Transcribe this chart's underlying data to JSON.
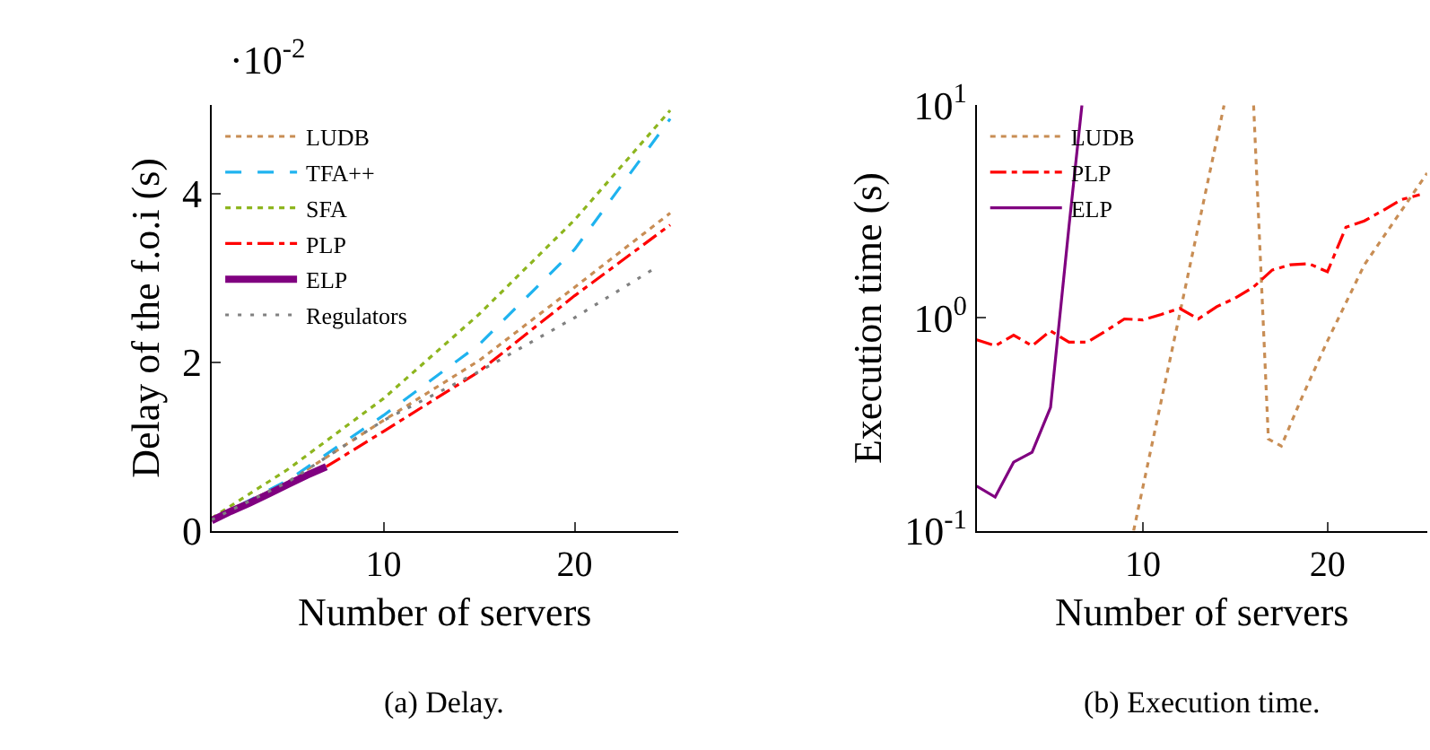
{
  "chart_data": [
    {
      "type": "line",
      "xlabel": "Number of servers",
      "ylabel": "Delay of the f.o.i (s)",
      "xlim": [
        1,
        25.4
      ],
      "ylim": [
        0,
        5.05
      ],
      "xticks": [
        10,
        20
      ],
      "yticks": [
        0,
        2,
        4
      ],
      "grid": false,
      "legend": "top left",
      "marker": "none",
      "annotations": [
        "·10$^{-2}$",
        "(a) Delay."
      ],
      "series": [
        {
          "name": "LUDB",
          "color": "#c88d54",
          "line_style": "dotted",
          "x": [
            1,
            5,
            10,
            15,
            20,
            25
          ],
          "values": [
            0.13,
            0.58,
            1.31,
            2.02,
            2.89,
            3.77
          ]
        },
        {
          "name": "TFA++",
          "color": "#1fb3ef",
          "line_style": "dashed",
          "x": [
            1,
            5,
            10,
            15,
            20,
            25
          ],
          "values": [
            0.13,
            0.6,
            1.37,
            2.21,
            3.34,
            4.89
          ]
        },
        {
          "name": "SFA",
          "color": "#8db51e",
          "line_style": "dotted",
          "x": [
            1,
            5,
            10,
            15,
            20,
            25
          ],
          "values": [
            0.15,
            0.73,
            1.57,
            2.57,
            3.69,
            4.99
          ]
        },
        {
          "name": "PLP",
          "color": "#ff0000",
          "line_style": "dashdot",
          "x": [
            7,
            10,
            15,
            20,
            25
          ],
          "values": [
            0.76,
            1.18,
            1.89,
            2.79,
            3.63
          ]
        },
        {
          "name": "ELP",
          "color": "#800080",
          "line_style": "solid",
          "x": [
            1,
            2,
            3,
            4,
            5,
            6,
            7
          ],
          "values": [
            0.12,
            0.23,
            0.33,
            0.44,
            0.55,
            0.66,
            0.76
          ]
        },
        {
          "name": "Regulators",
          "color": "#808080",
          "line_style": "sparse",
          "x": [
            1,
            5,
            10,
            15,
            20,
            24.3
          ],
          "values": [
            0.13,
            0.58,
            1.31,
            1.89,
            2.53,
            3.13
          ]
        }
      ]
    },
    {
      "type": "line",
      "xlabel": "Number of servers",
      "ylabel": "Execution time (s)",
      "log": "y",
      "xlim": [
        1,
        25.4
      ],
      "ylim": [
        0.1,
        10
      ],
      "xticks": [
        10,
        20
      ],
      "yticks": [
        {
          "value": 0.1,
          "label": "10$^{-1}$"
        },
        {
          "value": 1,
          "label": "10$^{0}$"
        },
        {
          "value": 10,
          "label": "10$^{1}$"
        }
      ],
      "grid": false,
      "legend": "top left",
      "marker": "none",
      "annotations": [
        "(b) Execution time."
      ],
      "series": [
        {
          "name": "LUDB",
          "color": "#c88d54",
          "line_style": "dotted",
          "x": [
            9.5,
            14.4,
            null,
            16.0,
            16.8,
            17.5,
            18.6,
            20,
            22,
            25.4
          ],
          "values": [
            0.1,
            10,
            null,
            10,
            0.27,
            0.25,
            0.42,
            0.78,
            1.78,
            4.8
          ]
        },
        {
          "name": "PLP",
          "color": "#ff0000",
          "line_style": "dashdot",
          "x": [
            1,
            2,
            3,
            4,
            5,
            6,
            7,
            8,
            9,
            10,
            11,
            12,
            13,
            14,
            15,
            16,
            17,
            18,
            19,
            20,
            21,
            22,
            23,
            24,
            25
          ],
          "values": [
            0.79,
            0.74,
            0.83,
            0.74,
            0.87,
            0.77,
            0.77,
            0.87,
            0.99,
            0.98,
            1.04,
            1.11,
            0.99,
            1.13,
            1.24,
            1.4,
            1.68,
            1.78,
            1.8,
            1.65,
            2.67,
            2.86,
            3.2,
            3.6,
            3.8
          ]
        },
        {
          "name": "ELP",
          "color": "#800080",
          "line_style": "solid",
          "x": [
            1,
            2,
            3,
            4,
            5,
            6,
            6.7
          ],
          "values": [
            0.162,
            0.144,
            0.21,
            0.234,
            0.38,
            2.7,
            10
          ]
        }
      ]
    }
  ]
}
